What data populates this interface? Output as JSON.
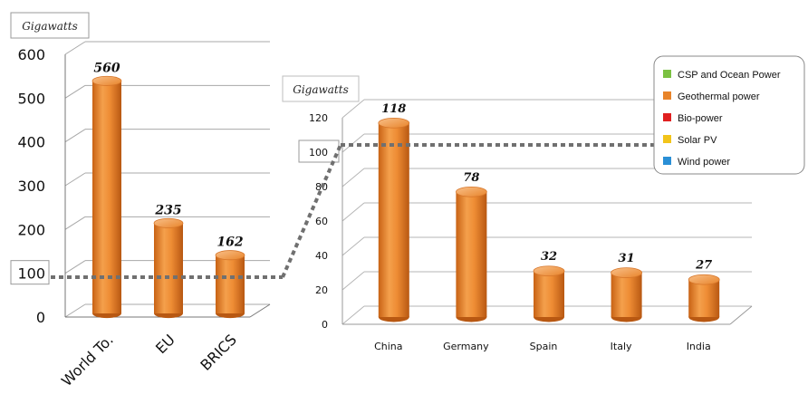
{
  "chart_data": [
    {
      "type": "bar",
      "unit_label": "Gigawatts",
      "categories": [
        "World To.",
        "EU",
        "BRICS"
      ],
      "values": [
        560,
        235,
        162
      ],
      "data_labels": [
        "560",
        "235",
        "162"
      ],
      "ylim": [
        0,
        600
      ],
      "y_ticks": [
        "0",
        "100",
        "200",
        "300",
        "400",
        "500",
        "600"
      ],
      "highlight_tick": "100",
      "bar_color": "#e8842a",
      "grid": true
    },
    {
      "type": "bar",
      "unit_label": "Gigawatts",
      "categories": [
        "China",
        "Germany",
        "Spain",
        "Italy",
        "India"
      ],
      "values": [
        118,
        78,
        32,
        31,
        27
      ],
      "data_labels": [
        "118",
        "78",
        "32",
        "31",
        "27"
      ],
      "ylim": [
        0,
        120
      ],
      "y_ticks": [
        "0",
        "20",
        "40",
        "60",
        "80",
        "100",
        "120"
      ],
      "highlight_tick": "100",
      "bar_color": "#e8842a",
      "grid": true,
      "legend": {
        "placement": "top-right",
        "entries": [
          {
            "label": "CSP and Ocean Power",
            "color": "#7bc142"
          },
          {
            "label": "Geothermal power",
            "color": "#e8842a"
          },
          {
            "label": "Bio-power",
            "color": "#e02020"
          },
          {
            "label": "Solar PV",
            "color": "#f2c41a"
          },
          {
            "label": "Wind power",
            "color": "#2a8fd6"
          }
        ]
      }
    }
  ]
}
